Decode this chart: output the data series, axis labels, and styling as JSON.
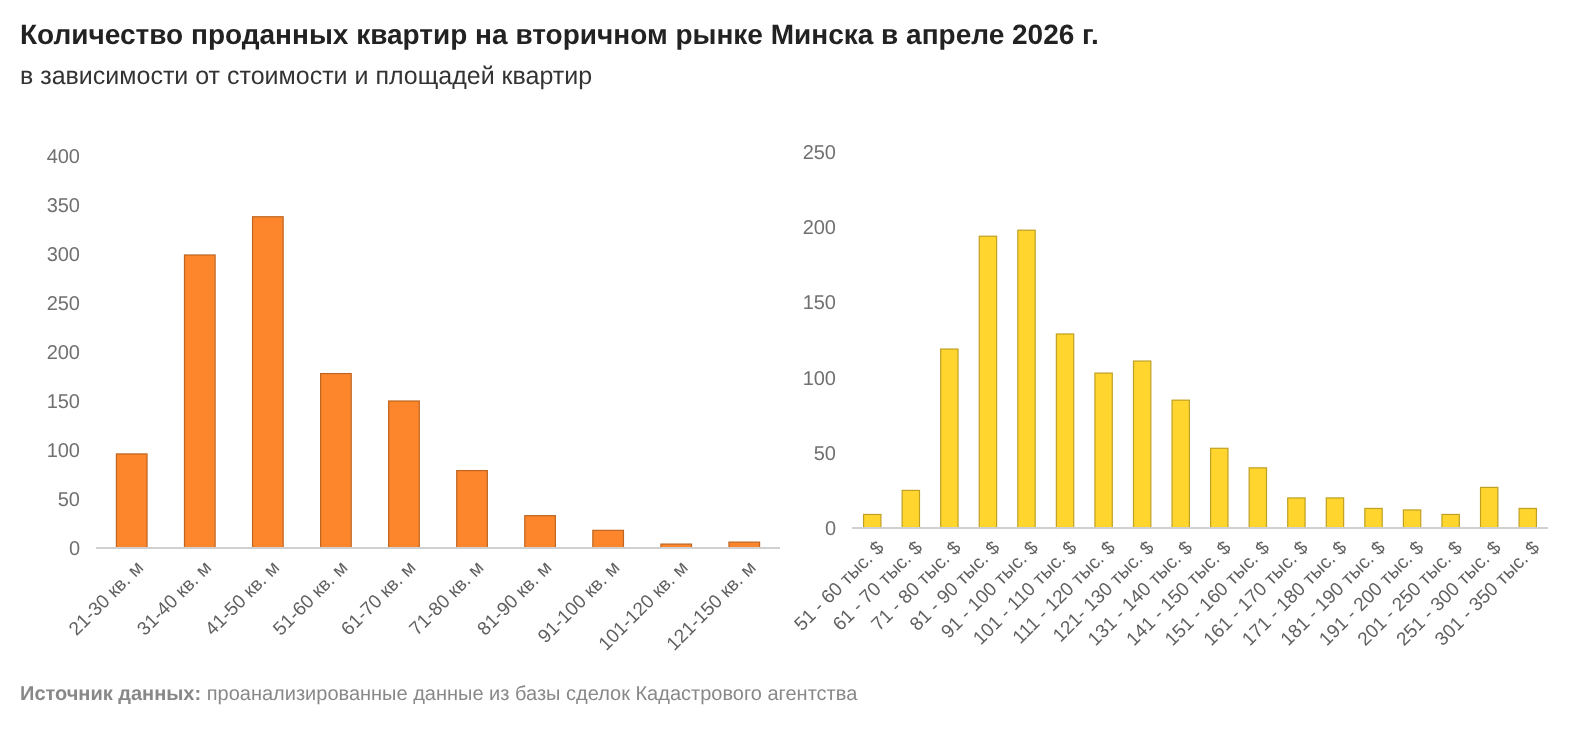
{
  "chart_data": [
    {
      "type": "bar",
      "title": "Количество проданных квартир на вторичном рынке Минска в апреле 2026 г.",
      "subtitle": "в зависимости от стоимости и площадей квартир",
      "annotations": [
        "Источник данных: проанализированные данные из базы сделок Кадастрового агентства"
      ],
      "categories": [
        "21-30 кв. м",
        "31-40 кв. м",
        "41-50 кв. м",
        "51-60 кв. м",
        "61-70 кв. м",
        "71-80 кв. м",
        "81-90 кв. м",
        "91-100 кв. м",
        "101-120 кв. м",
        "121-150 кв. м"
      ],
      "values": [
        96,
        299,
        338,
        178,
        150,
        79,
        33,
        18,
        4,
        6
      ],
      "color": "#fd862c",
      "ylim": [
        0,
        400
      ],
      "yticks": [
        0,
        50,
        100,
        150,
        200,
        250,
        300,
        350,
        400
      ],
      "grid": false
    },
    {
      "type": "bar",
      "categories": [
        "51 - 60 тыс. $",
        "61 - 70 тыс. $",
        "71 - 80 тыс. $",
        "81 - 90 тыс. $",
        "91 - 100 тыс. $",
        "101 - 110 тыс. $",
        "111 - 120 тыс. $",
        "121- 130 тыс. $",
        "131 - 140 тыс. $",
        "141 - 150 тыс. $",
        "151 - 160 тыс. $",
        "161 - 170 тыс. $",
        "171 - 180 тыс. $",
        "181 - 190 тыс. $",
        "191 - 200 тыс. $",
        "201 - 250 тыс. $",
        "251 - 300 тыс. $",
        "301 - 350 тыс. $"
      ],
      "values": [
        9,
        25,
        119,
        194,
        198,
        129,
        103,
        111,
        85,
        53,
        40,
        20,
        20,
        13,
        12,
        9,
        27,
        13
      ],
      "color": "#ffd52e",
      "ylim": [
        0,
        250
      ],
      "yticks": [
        0,
        50,
        100,
        150,
        200,
        250
      ],
      "grid": false
    }
  ]
}
